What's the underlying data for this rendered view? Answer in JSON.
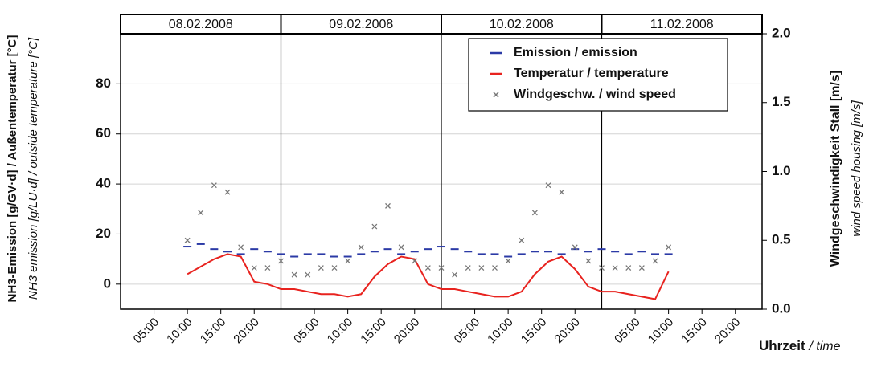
{
  "chart_data": {
    "type": "time-series",
    "dates": [
      "08.02.2008",
      "09.02.2008",
      "10.02.2008",
      "11.02.2008"
    ],
    "ylabel": "NH3-Emission [g/GV·d]  / Außentemperatur [°C]",
    "ylabel_en": "NH3 emission [g/LU·d] / outside temperature [°C]",
    "y2label": "Windgeschwindigkeit Stall [m/s]",
    "y2label_en": "wind speed housing [m/s]",
    "xlabel": "Uhrzeit",
    "xlabel_en": "/ time",
    "xlim": [
      0,
      96
    ],
    "xticks": [
      {
        "value": 5,
        "label": "05:00"
      },
      {
        "value": 10,
        "label": "10:00"
      },
      {
        "value": 15,
        "label": "15:00"
      },
      {
        "value": 20,
        "label": "20:00"
      },
      {
        "value": 29,
        "label": "05:00"
      },
      {
        "value": 34,
        "label": "10:00"
      },
      {
        "value": 39,
        "label": "15:00"
      },
      {
        "value": 44,
        "label": "20:00"
      },
      {
        "value": 53,
        "label": "05:00"
      },
      {
        "value": 58,
        "label": "10:00"
      },
      {
        "value": 63,
        "label": "15:00"
      },
      {
        "value": 68,
        "label": "20:00"
      },
      {
        "value": 77,
        "label": "05:00"
      },
      {
        "value": 82,
        "label": "10:00"
      },
      {
        "value": 87,
        "label": "15:00"
      },
      {
        "value": 92,
        "label": "20:00"
      }
    ],
    "ylim": [
      -10,
      100
    ],
    "yticks": [
      0,
      20,
      40,
      60,
      80
    ],
    "y2lim": [
      0,
      2
    ],
    "y2ticks": [
      {
        "value": 0,
        "label": "0.0"
      },
      {
        "value": 0.5,
        "label": "0.5"
      },
      {
        "value": 1,
        "label": "1.0"
      },
      {
        "value": 1.5,
        "label": "1.5"
      },
      {
        "value": 2,
        "label": "2.0"
      }
    ],
    "grid": true,
    "legend": "upper right",
    "x": [
      10,
      12,
      14,
      16,
      18,
      20,
      22,
      24,
      26,
      28,
      30,
      32,
      34,
      36,
      38,
      40,
      42,
      44,
      46,
      48,
      50,
      52,
      54,
      56,
      58,
      60,
      62,
      64,
      66,
      68,
      70,
      72,
      74,
      76,
      78,
      80,
      82
    ],
    "series": [
      {
        "name": "Emission / emission",
        "color": "#2b3aa6",
        "marker": "dash",
        "values": [
          15,
          16,
          14,
          13,
          12,
          14,
          13,
          12,
          11,
          12,
          12,
          11,
          11,
          12,
          13,
          14,
          12,
          13,
          14,
          15,
          14,
          13,
          12,
          12,
          11,
          12,
          13,
          13,
          12,
          14,
          13,
          14,
          13,
          12,
          13,
          12,
          12
        ]
      },
      {
        "name": "Temperatur / temperature",
        "color": "#e8231f",
        "marker": "line",
        "values": [
          4,
          7,
          10,
          12,
          11,
          1,
          0,
          -2,
          -2,
          -3,
          -4,
          -4,
          -5,
          -4,
          3,
          8,
          11,
          10,
          0,
          -2,
          -2,
          -3,
          -4,
          -5,
          -5,
          -3,
          4,
          9,
          11,
          6,
          -1,
          -3,
          -3,
          -4,
          -5,
          -6,
          5
        ]
      },
      {
        "name": "Windgeschw. / wind speed",
        "color": "#777777",
        "marker": "cross",
        "axis": "y2",
        "values": [
          0.5,
          0.7,
          0.9,
          0.85,
          0.45,
          0.3,
          0.3,
          0.35,
          0.25,
          0.25,
          0.3,
          0.3,
          0.35,
          0.45,
          0.6,
          0.75,
          0.45,
          0.35,
          0.3,
          0.3,
          0.25,
          0.3,
          0.3,
          0.3,
          0.35,
          0.5,
          0.7,
          0.9,
          0.85,
          0.45,
          0.35,
          0.3,
          0.3,
          0.3,
          0.3,
          0.35,
          0.45
        ]
      }
    ]
  }
}
